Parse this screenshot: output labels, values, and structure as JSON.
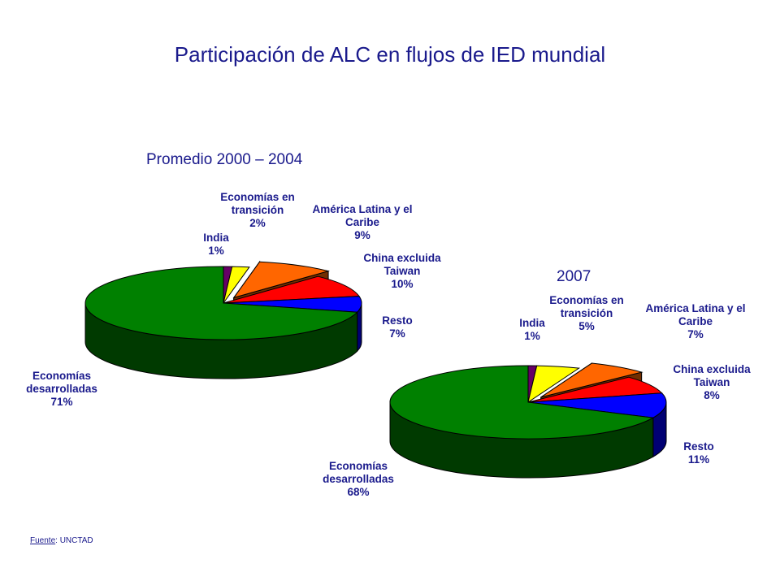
{
  "chart_data": [
    {
      "type": "pie",
      "title": "Participación de ALC en flujos de IED mundial",
      "subtitle": "Promedio 2000 – 2004",
      "slices": [
        {
          "name": "India",
          "value": 1,
          "value_label": "1%",
          "color": "#660066"
        },
        {
          "name": "Economías en transición",
          "value": 2,
          "value_label": "2%",
          "color": "#ffff00"
        },
        {
          "name": "América Latina y el Caribe",
          "value": 9,
          "value_label": "9%",
          "color": "#ff6600",
          "exploded": true
        },
        {
          "name": "China excluida Taiwan",
          "value": 10,
          "value_label": "10%",
          "color": "#ff0000"
        },
        {
          "name": "Resto",
          "value": 7,
          "value_label": "7%",
          "color": "#0000ff"
        },
        {
          "name": "Economías desarrolladas",
          "value": 71,
          "value_label": "71%",
          "color": "#008000"
        }
      ]
    },
    {
      "type": "pie",
      "title": "Participación de ALC en flujos de IED mundial",
      "subtitle": "2007",
      "slices": [
        {
          "name": "India",
          "value": 1,
          "value_label": "1%",
          "color": "#660066"
        },
        {
          "name": "Economías en transición",
          "value": 5,
          "value_label": "5%",
          "color": "#ffff00"
        },
        {
          "name": "América Latina y el Caribe",
          "value": 7,
          "value_label": "7%",
          "color": "#ff6600",
          "exploded": true
        },
        {
          "name": "China excluida Taiwan",
          "value": 8,
          "value_label": "8%",
          "color": "#ff0000"
        },
        {
          "name": "Resto",
          "value": 11,
          "value_label": "11%",
          "color": "#0000ff"
        },
        {
          "name": "Economías desarrolladas",
          "value": 68,
          "value_label": "68%",
          "color": "#008000"
        }
      ]
    }
  ],
  "labels": {
    "c1": {
      "india": [
        "India",
        "1%"
      ],
      "transicion": [
        "Economías en",
        "transición",
        "2%"
      ],
      "alc": [
        "América Latina y el",
        "Caribe",
        "9%"
      ],
      "china": [
        "China excluida",
        "Taiwan",
        "10%"
      ],
      "resto": [
        "Resto",
        "7%"
      ],
      "desarrolladas": [
        "Economías",
        "desarrolladas",
        "71%"
      ]
    },
    "c2": {
      "india": [
        "India",
        "1%"
      ],
      "transicion": [
        "Economías en",
        "transición",
        "5%"
      ],
      "alc": [
        "América Latina y el",
        "Caribe",
        "7%"
      ],
      "china": [
        "China excluida",
        "Taiwan",
        "8%"
      ],
      "resto": [
        "Resto",
        "11%"
      ],
      "desarrolladas": [
        "Economías",
        "desarrolladas",
        "68%"
      ]
    }
  },
  "source": {
    "label": "Fuente",
    "text": ": UNCTAD"
  }
}
